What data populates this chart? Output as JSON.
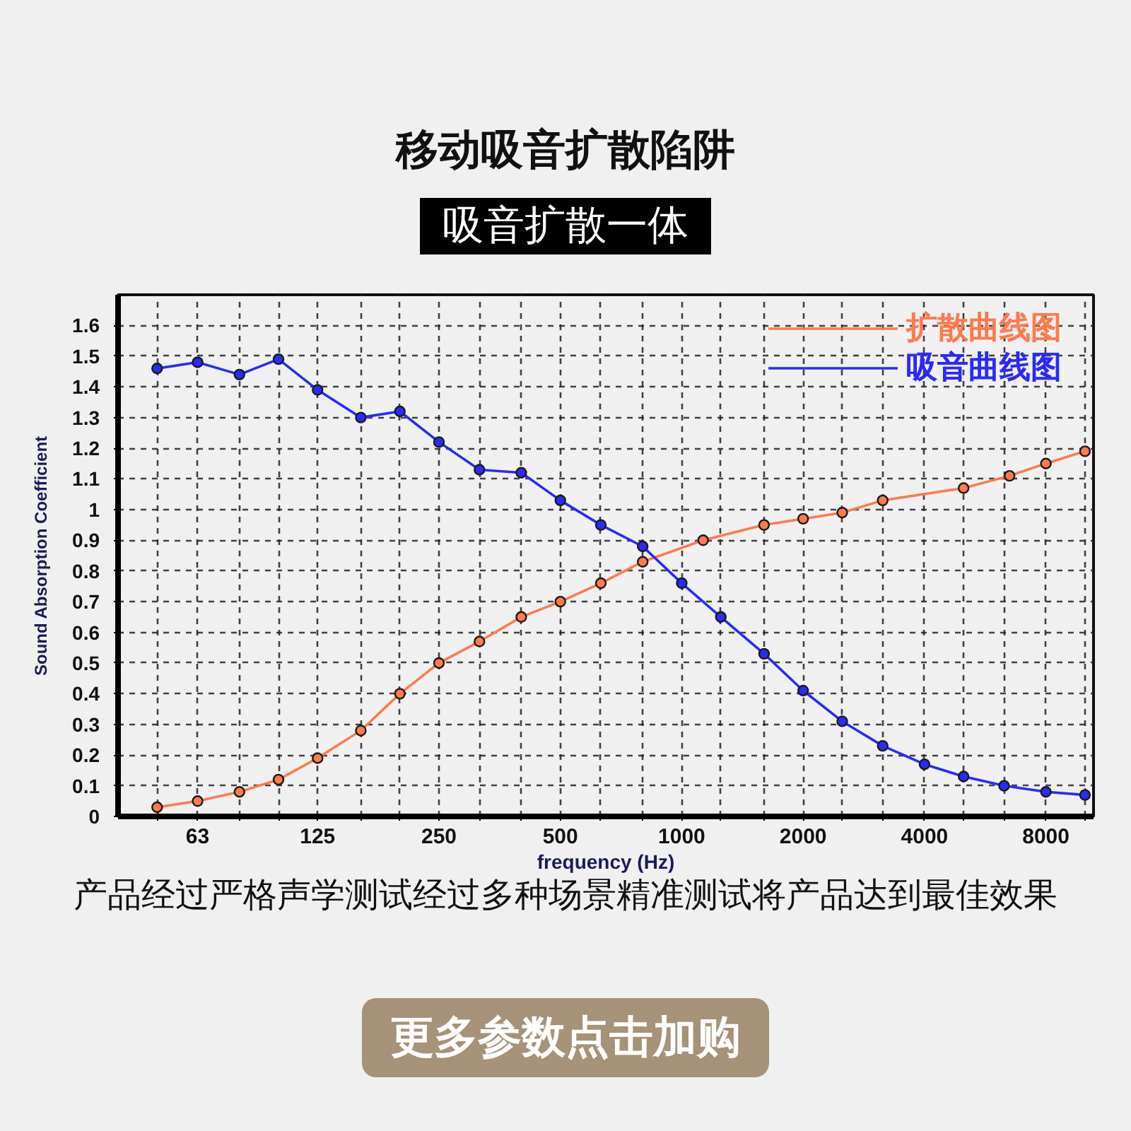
{
  "chart_data": {
    "type": "line",
    "title": "移动吸音扩散陷阱",
    "subtitle": "吸音扩散一体",
    "xlabel": "frequency (Hz)",
    "ylabel": "Sound Absorption Coefficient",
    "annotations": [
      "产品经过严格声学测试经过多种场景精准测试将产品达到最佳效果",
      "更多参数点击加购"
    ],
    "log": "x",
    "xlim": [
      40,
      10500
    ],
    "xticks": [
      {
        "value": 50,
        "label": null
      },
      63,
      {
        "value": 80,
        "label": null
      },
      {
        "value": 100,
        "label": null
      },
      125,
      {
        "value": 160,
        "label": null
      },
      {
        "value": 200,
        "label": null
      },
      250,
      {
        "value": 315,
        "label": null
      },
      {
        "value": 400,
        "label": null
      },
      500,
      {
        "value": 630,
        "label": null
      },
      {
        "value": 800,
        "label": null
      },
      1000,
      {
        "value": 1250,
        "label": null
      },
      {
        "value": 1600,
        "label": null
      },
      2000,
      {
        "value": 2500,
        "label": null
      },
      {
        "value": 3150,
        "label": null
      },
      4000,
      {
        "value": 5000,
        "label": null
      },
      {
        "value": 6300,
        "label": null
      },
      8000,
      {
        "value": 10000,
        "label": null
      }
    ],
    "ylim": [
      0,
      1.7
    ],
    "yticks": [
      0,
      0.1,
      0.2,
      0.3,
      0.4,
      0.5,
      0.6,
      0.7,
      0.8,
      0.9,
      1,
      1.1,
      1.2,
      1.3,
      1.4,
      1.5,
      1.6
    ],
    "grid": true,
    "legend": "top right",
    "marker": "circle",
    "line_style": "solid",
    "series": [
      {
        "name": "扩散曲线图",
        "color": "#ff7a4f",
        "x": [
          50,
          63,
          80,
          100,
          125,
          160,
          200,
          250,
          315,
          400,
          500,
          630,
          800,
          1130,
          1600,
          2000,
          2500,
          3150,
          5000,
          6500,
          8000,
          10000
        ],
        "values": [
          0.03,
          0.05,
          0.08,
          0.12,
          0.19,
          0.28,
          0.4,
          0.5,
          0.57,
          0.65,
          0.7,
          0.76,
          0.83,
          0.9,
          0.95,
          0.97,
          0.99,
          1.03,
          1.07,
          1.11,
          1.15,
          1.19
        ]
      },
      {
        "name": "吸音曲线图",
        "color": "#2a2aff",
        "x": [
          50,
          63,
          80,
          100,
          125,
          160,
          200,
          250,
          315,
          400,
          500,
          630,
          800,
          1000,
          1250,
          1600,
          2000,
          2500,
          3150,
          4000,
          5000,
          6300,
          8000,
          10000
        ],
        "values": [
          1.46,
          1.48,
          1.44,
          1.49,
          1.39,
          1.3,
          1.32,
          1.22,
          1.13,
          1.12,
          1.03,
          0.95,
          0.88,
          0.76,
          0.65,
          0.53,
          0.41,
          0.31,
          0.23,
          0.17,
          0.13,
          0.1,
          0.08,
          0.07
        ]
      }
    ]
  }
}
